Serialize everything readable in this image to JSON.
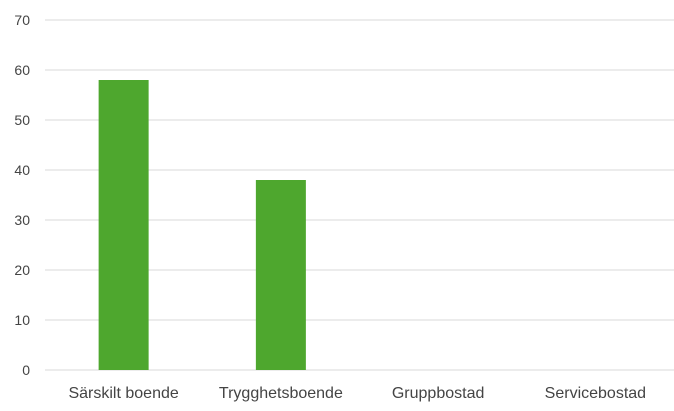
{
  "chart_data": {
    "type": "bar",
    "categories": [
      "Särskilt boende",
      "Trygghetsboende",
      "Gruppbostad",
      "Servicebostad"
    ],
    "values": [
      58,
      38,
      0,
      0
    ],
    "ylim": [
      0,
      70
    ],
    "yticks": [
      0,
      10,
      20,
      30,
      40,
      50,
      60,
      70
    ],
    "grid": true,
    "legend": "none",
    "bar_color": "#4EA72E",
    "grid_color": "#D9D9D9",
    "text_color": "#444444"
  }
}
